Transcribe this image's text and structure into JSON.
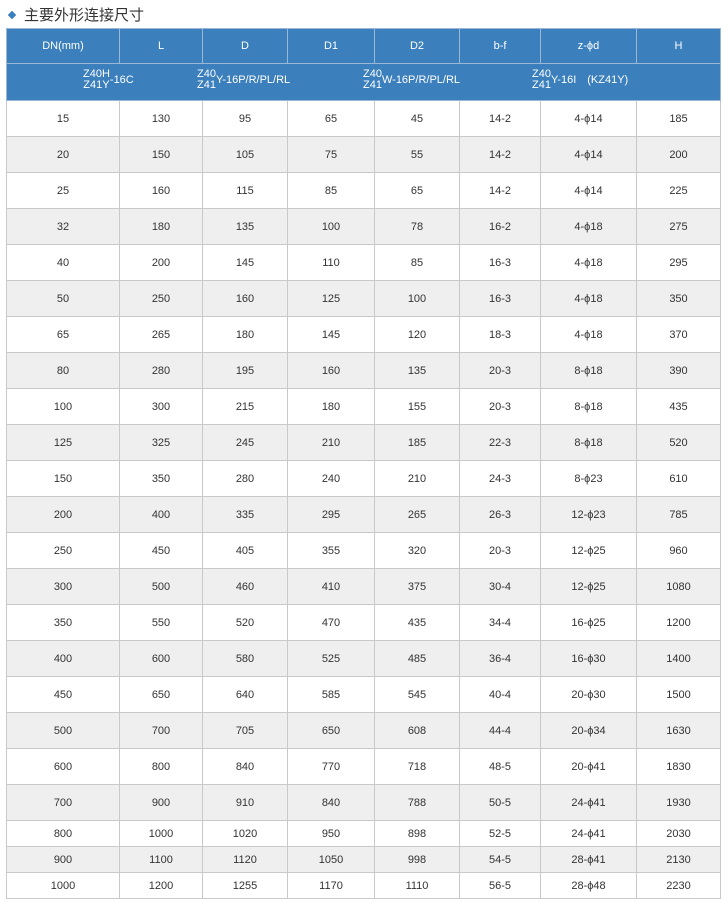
{
  "title": "主要外形连接尺寸",
  "columns": [
    "DN(mm)",
    "L",
    "D",
    "D1",
    "D2",
    "b-f",
    "z-ϕd",
    "H"
  ],
  "models": [
    {
      "top": "Z40H",
      "bottom": "Z41Y",
      "suffix": "-16C"
    },
    {
      "top": "Z40",
      "bottom": "Z41",
      "suffix": "Y-16P/R/PL/RL"
    },
    {
      "top": "Z40",
      "bottom": "Z41",
      "suffix": "W-16P/R/PL/RL"
    },
    {
      "top": "Z40",
      "bottom": "Z41",
      "suffix": "Y-16I　(KZ41Y)"
    }
  ],
  "rows": [
    [
      "15",
      "130",
      "95",
      "65",
      "45",
      "14-2",
      "4-ϕ14",
      "185"
    ],
    [
      "20",
      "150",
      "105",
      "75",
      "55",
      "14-2",
      "4-ϕ14",
      "200"
    ],
    [
      "25",
      "160",
      "115",
      "85",
      "65",
      "14-2",
      "4-ϕ14",
      "225"
    ],
    [
      "32",
      "180",
      "135",
      "100",
      "78",
      "16-2",
      "4-ϕ18",
      "275"
    ],
    [
      "40",
      "200",
      "145",
      "110",
      "85",
      "16-3",
      "4-ϕ18",
      "295"
    ],
    [
      "50",
      "250",
      "160",
      "125",
      "100",
      "16-3",
      "4-ϕ18",
      "350"
    ],
    [
      "65",
      "265",
      "180",
      "145",
      "120",
      "18-3",
      "4-ϕ18",
      "370"
    ],
    [
      "80",
      "280",
      "195",
      "160",
      "135",
      "20-3",
      "8-ϕ18",
      "390"
    ],
    [
      "100",
      "300",
      "215",
      "180",
      "155",
      "20-3",
      "8-ϕ18",
      "435"
    ],
    [
      "125",
      "325",
      "245",
      "210",
      "185",
      "22-3",
      "8-ϕ18",
      "520"
    ],
    [
      "150",
      "350",
      "280",
      "240",
      "210",
      "24-3",
      "8-ϕ23",
      "610"
    ],
    [
      "200",
      "400",
      "335",
      "295",
      "265",
      "26-3",
      "12-ϕ23",
      "785"
    ],
    [
      "250",
      "450",
      "405",
      "355",
      "320",
      "20-3",
      "12-ϕ25",
      "960"
    ],
    [
      "300",
      "500",
      "460",
      "410",
      "375",
      "30-4",
      "12-ϕ25",
      "1080"
    ],
    [
      "350",
      "550",
      "520",
      "470",
      "435",
      "34-4",
      "16-ϕ25",
      "1200"
    ],
    [
      "400",
      "600",
      "580",
      "525",
      "485",
      "36-4",
      "16-ϕ30",
      "1400"
    ],
    [
      "450",
      "650",
      "640",
      "585",
      "545",
      "40-4",
      "20-ϕ30",
      "1500"
    ],
    [
      "500",
      "700",
      "705",
      "650",
      "608",
      "44-4",
      "20-ϕ34",
      "1630"
    ],
    [
      "600",
      "800",
      "840",
      "770",
      "718",
      "48-5",
      "20-ϕ41",
      "1830"
    ],
    [
      "700",
      "900",
      "910",
      "840",
      "788",
      "50-5",
      "24-ϕ41",
      "1930"
    ],
    [
      "800",
      "1000",
      "1020",
      "950",
      "898",
      "52-5",
      "24-ϕ41",
      "2030"
    ],
    [
      "900",
      "1100",
      "1120",
      "1050",
      "998",
      "54-5",
      "28-ϕ41",
      "2130"
    ],
    [
      "1000",
      "1200",
      "1255",
      "1170",
      "1110",
      "56-5",
      "28-ϕ48",
      "2230"
    ]
  ]
}
